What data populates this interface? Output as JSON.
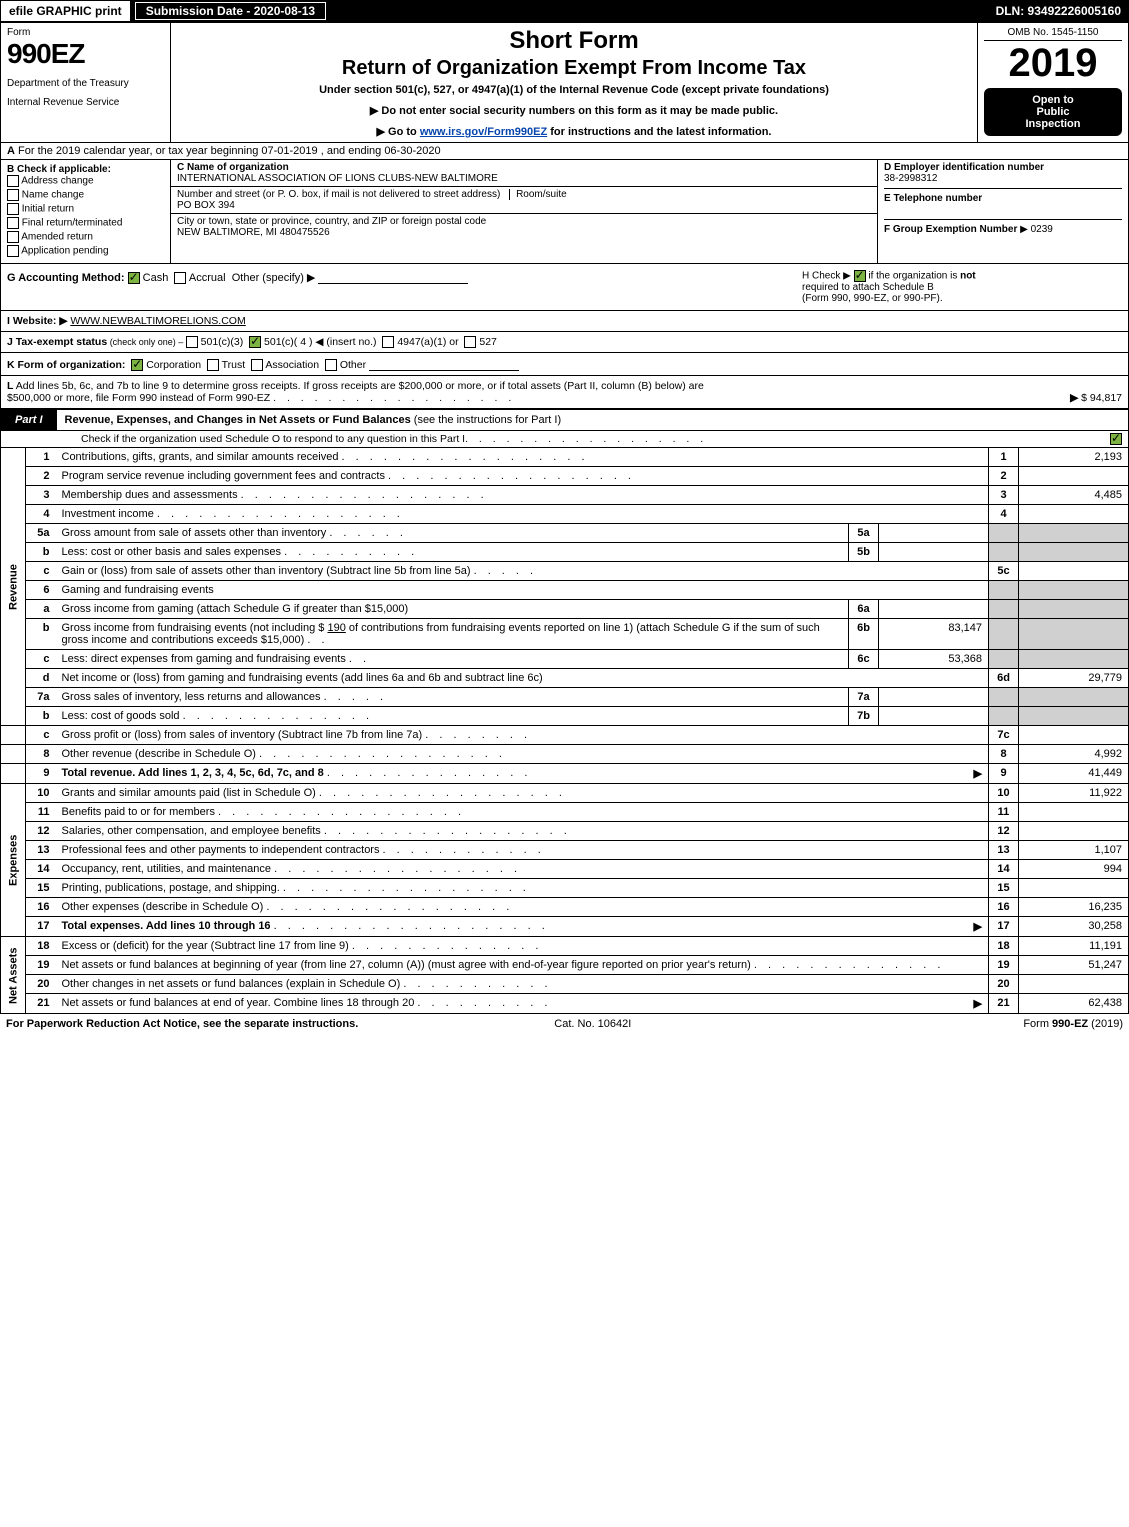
{
  "topbar": {
    "efile": "efile GRAPHIC print",
    "submission": "Submission Date - 2020-08-13",
    "dln": "DLN: 93492226005160"
  },
  "header": {
    "form_label": "Form",
    "form_number": "990EZ",
    "dept1": "Department of the Treasury",
    "dept2": "Internal Revenue Service",
    "short_form": "Short Form",
    "return_title": "Return of Organization Exempt From Income Tax",
    "under_section": "Under section 501(c), 527, or 4947(a)(1) of the Internal Revenue Code (except private foundations)",
    "arrow1": "▶ Do not enter social security numbers on this form as it may be made public.",
    "arrow2_pre": "▶ Go to ",
    "arrow2_link": "www.irs.gov/Form990EZ",
    "arrow2_post": " for instructions and the latest information.",
    "omb": "OMB No. 1545-1150",
    "year": "2019",
    "open1": "Open to",
    "open2": "Public",
    "open3": "Inspection"
  },
  "a_row": {
    "prefix": "A",
    "text": " For the 2019 calendar year, or tax year beginning 07-01-2019 , and ending 06-30-2020"
  },
  "b": {
    "label": "B  Check if applicable:",
    "items": [
      "Address change",
      "Name change",
      "Initial return",
      "Final return/terminated",
      "Amended return",
      "Application pending"
    ]
  },
  "c": {
    "name_label": "C Name of organization",
    "name": "INTERNATIONAL ASSOCIATION OF LIONS CLUBS-NEW BALTIMORE",
    "street_label": "Number and street (or P. O. box, if mail is not delivered to street address)",
    "room_label": "Room/suite",
    "street": "PO BOX 394",
    "city_label": "City or town, state or province, country, and ZIP or foreign postal code",
    "city": "NEW BALTIMORE, MI  480475526"
  },
  "d": {
    "label": "D Employer identification number",
    "value": "38-2998312",
    "e_label": "E Telephone number",
    "e_value": "",
    "f_label": "F Group Exemption Number",
    "f_arrow": "▶",
    "f_value": "0239"
  },
  "g": {
    "label": "G Accounting Method:",
    "cash": "Cash",
    "accrual": "Accrual",
    "other": "Other (specify) ▶"
  },
  "h": {
    "line1_pre": "H  Check ▶ ",
    "line1_post": " if the organization is ",
    "not": "not",
    "line2": "required to attach Schedule B",
    "line3": "(Form 990, 990-EZ, or 990-PF)."
  },
  "i": {
    "label": "I Website: ▶",
    "value": "WWW.NEWBALTIMORELIONS.COM"
  },
  "j": {
    "label": "J Tax-exempt status",
    "sub": " (check only one) – ",
    "o1": "501(c)(3)",
    "o2": "501(c)( 4 ) ◀ (insert no.)",
    "o3": "4947(a)(1) or",
    "o4": "527"
  },
  "k": {
    "label": "K Form of organization:",
    "corp": "Corporation",
    "trust": "Trust",
    "assoc": "Association",
    "other": "Other"
  },
  "l": {
    "label": "L",
    "text1": " Add lines 5b, 6c, and 7b to line 9 to determine gross receipts. If gross receipts are $200,000 or more, or if total assets (Part II, column (B) below) are",
    "text2": "$500,000 or more, file Form 990 instead of Form 990-EZ",
    "arrow": "▶",
    "value": "$ 94,817"
  },
  "part1": {
    "tab": "Part I",
    "title": "Revenue, Expenses, and Changes in Net Assets or Fund Balances ",
    "title_sub": "(see the instructions for Part I)",
    "subline": "Check if the organization used Schedule O to respond to any question in this Part I"
  },
  "side": {
    "revenue": "Revenue",
    "expenses": "Expenses",
    "netassets": "Net Assets"
  },
  "rows": {
    "r1": {
      "n": "1",
      "d": "Contributions, gifts, grants, and similar amounts received",
      "rn": "1",
      "rv": "2,193"
    },
    "r2": {
      "n": "2",
      "d": "Program service revenue including government fees and contracts",
      "rn": "2",
      "rv": ""
    },
    "r3": {
      "n": "3",
      "d": "Membership dues and assessments",
      "rn": "3",
      "rv": "4,485"
    },
    "r4": {
      "n": "4",
      "d": "Investment income",
      "rn": "4",
      "rv": ""
    },
    "r5a": {
      "n": "5a",
      "d": "Gross amount from sale of assets other than inventory",
      "ib": "5a",
      "iv": ""
    },
    "r5b": {
      "n": "b",
      "d": "Less: cost or other basis and sales expenses",
      "ib": "5b",
      "iv": ""
    },
    "r5c": {
      "n": "c",
      "d": "Gain or (loss) from sale of assets other than inventory (Subtract line 5b from line 5a)",
      "rn": "5c",
      "rv": ""
    },
    "r6": {
      "n": "6",
      "d": "Gaming and fundraising events"
    },
    "r6a": {
      "n": "a",
      "d": "Gross income from gaming (attach Schedule G if greater than $15,000)",
      "ib": "6a",
      "iv": ""
    },
    "r6b": {
      "n": "b",
      "d_pre": "Gross income from fundraising events (not including $ ",
      "d_amt": "190",
      "d_mid": " of contributions from fundraising events reported on line 1) (attach Schedule G if the sum of such gross income and contributions exceeds $15,000)",
      "ib": "6b",
      "iv": "83,147"
    },
    "r6c": {
      "n": "c",
      "d": "Less: direct expenses from gaming and fundraising events",
      "ib": "6c",
      "iv": "53,368"
    },
    "r6d": {
      "n": "d",
      "d": "Net income or (loss) from gaming and fundraising events (add lines 6a and 6b and subtract line 6c)",
      "rn": "6d",
      "rv": "29,779"
    },
    "r7a": {
      "n": "7a",
      "d": "Gross sales of inventory, less returns and allowances",
      "ib": "7a",
      "iv": ""
    },
    "r7b": {
      "n": "b",
      "d": "Less: cost of goods sold",
      "ib": "7b",
      "iv": ""
    },
    "r7c": {
      "n": "c",
      "d": "Gross profit or (loss) from sales of inventory (Subtract line 7b from line 7a)",
      "rn": "7c",
      "rv": ""
    },
    "r8": {
      "n": "8",
      "d": "Other revenue (describe in Schedule O)",
      "rn": "8",
      "rv": "4,992"
    },
    "r9": {
      "n": "9",
      "d": "Total revenue. Add lines 1, 2, 3, 4, 5c, 6d, 7c, and 8",
      "rn": "9",
      "rv": "41,449",
      "bold": true,
      "arrow": true
    },
    "r10": {
      "n": "10",
      "d": "Grants and similar amounts paid (list in Schedule O)",
      "rn": "10",
      "rv": "11,922"
    },
    "r11": {
      "n": "11",
      "d": "Benefits paid to or for members",
      "rn": "11",
      "rv": ""
    },
    "r12": {
      "n": "12",
      "d": "Salaries, other compensation, and employee benefits",
      "rn": "12",
      "rv": ""
    },
    "r13": {
      "n": "13",
      "d": "Professional fees and other payments to independent contractors",
      "rn": "13",
      "rv": "1,107"
    },
    "r14": {
      "n": "14",
      "d": "Occupancy, rent, utilities, and maintenance",
      "rn": "14",
      "rv": "994"
    },
    "r15": {
      "n": "15",
      "d": "Printing, publications, postage, and shipping.",
      "rn": "15",
      "rv": ""
    },
    "r16": {
      "n": "16",
      "d": "Other expenses (describe in Schedule O)",
      "rn": "16",
      "rv": "16,235"
    },
    "r17": {
      "n": "17",
      "d": "Total expenses. Add lines 10 through 16",
      "rn": "17",
      "rv": "30,258",
      "bold": true,
      "arrow": true
    },
    "r18": {
      "n": "18",
      "d": "Excess or (deficit) for the year (Subtract line 17 from line 9)",
      "rn": "18",
      "rv": "11,191"
    },
    "r19": {
      "n": "19",
      "d": "Net assets or fund balances at beginning of year (from line 27, column (A)) (must agree with end-of-year figure reported on prior year's return)",
      "rn": "19",
      "rv": "51,247"
    },
    "r20": {
      "n": "20",
      "d": "Other changes in net assets or fund balances (explain in Schedule O)",
      "rn": "20",
      "rv": ""
    },
    "r21": {
      "n": "21",
      "d": "Net assets or fund balances at end of year. Combine lines 18 through 20",
      "rn": "21",
      "rv": "62,438",
      "arrow": true
    }
  },
  "footer": {
    "left": "For Paperwork Reduction Act Notice, see the separate instructions.",
    "center": "Cat. No. 10642I",
    "right_pre": "Form ",
    "right_form": "990-EZ",
    "right_post": " (2019)"
  },
  "dots": ". . . . . . . . . . . . . . . . . ."
}
